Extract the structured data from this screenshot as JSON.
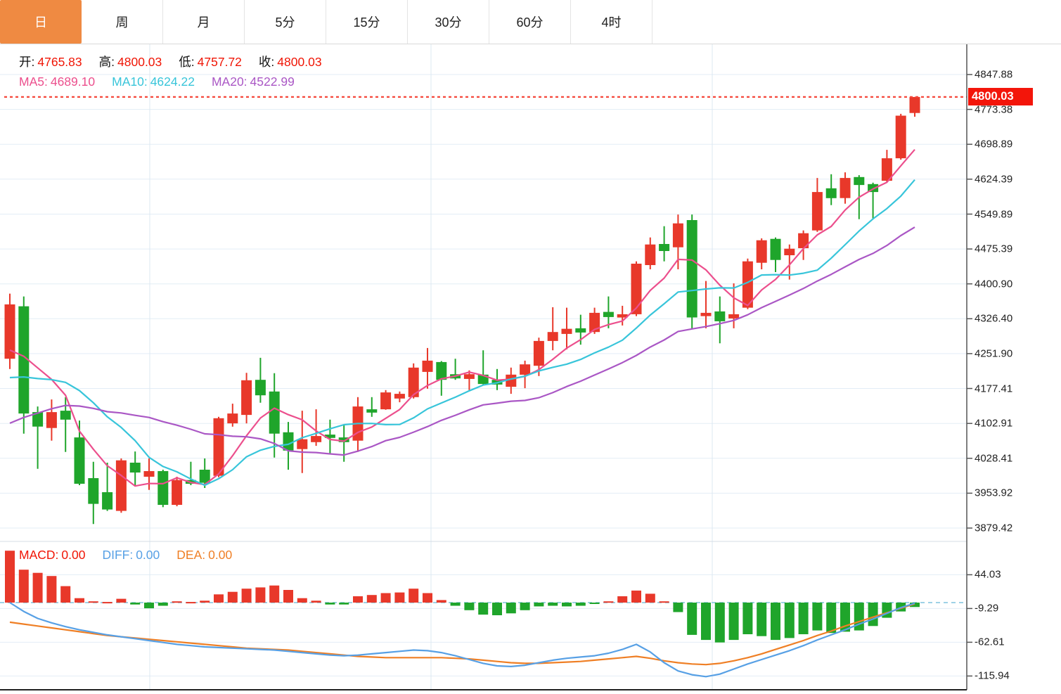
{
  "tabs": {
    "items": [
      {
        "label": "日",
        "active": true
      },
      {
        "label": "周"
      },
      {
        "label": "月"
      },
      {
        "label": "5分"
      },
      {
        "label": "15分"
      },
      {
        "label": "30分"
      },
      {
        "label": "60分"
      },
      {
        "label": "4时"
      }
    ]
  },
  "readout": {
    "ohlc": [
      {
        "label": "开:",
        "value": "4765.83"
      },
      {
        "label": "高:",
        "value": "4800.03"
      },
      {
        "label": "低:",
        "value": "4757.72"
      },
      {
        "label": "收:",
        "value": "4800.03"
      }
    ],
    "ma": [
      {
        "label": "MA5:",
        "value": "4689.10"
      },
      {
        "label": "MA10:",
        "value": "4624.22"
      },
      {
        "label": "MA20:",
        "value": "4522.99"
      }
    ],
    "macd": [
      {
        "label": "MACD:",
        "value": "0.00"
      },
      {
        "label": "DIFF:",
        "value": "0.00"
      },
      {
        "label": "DEA:",
        "value": "0.00"
      }
    ]
  },
  "colors": {
    "up_red": "#e8382a",
    "down_green": "#1fa52b",
    "ma5_pink": "#ec4f8d",
    "ma10_cyan": "#38c5da",
    "ma20_purple": "#aa57c5",
    "diff_blue": "#57a0e5",
    "dea_orange": "#ef7f25",
    "value_red": "#f01505",
    "tab_active_orange": "#ef8a42",
    "badge_red": "#f3150a",
    "dotted_line_red": "#f5473a",
    "grid_blue": "#e3edf6",
    "vgrid_blue": "#dce8f2",
    "zero_dash_blue": "#9ed2e6",
    "axis_line": "#555"
  },
  "chart_data": {
    "type": "candlestick+macd",
    "timeframe": "日",
    "last_price": 4800.03,
    "last_price_label": "4800.03",
    "price_axis_labels": [
      "4847.88",
      "4773.38",
      "4698.89",
      "4624.39",
      "4549.89",
      "4475.39",
      "4400.90",
      "4326.40",
      "4251.90",
      "4177.41",
      "4102.91",
      "4028.41",
      "3953.92",
      "3879.42"
    ],
    "macd_axis_labels": [
      "44.03",
      "-9.29",
      "-62.61",
      "-115.94"
    ],
    "ma_periods": [
      5,
      10,
      20
    ],
    "candles_ohlc": [
      [
        4241,
        4380,
        4219,
        4357
      ],
      [
        4353,
        4374,
        4081,
        4124
      ],
      [
        4127,
        4139,
        4006,
        4096
      ],
      [
        4093,
        4154,
        4066,
        4127
      ],
      [
        4130,
        4159,
        4042,
        4111
      ],
      [
        4073,
        4109,
        3971,
        3974
      ],
      [
        3986,
        4021,
        3888,
        3931
      ],
      [
        3956,
        4019,
        3916,
        3919
      ],
      [
        3916,
        4028,
        3912,
        4024
      ],
      [
        4019,
        4043,
        3971,
        3998
      ],
      [
        3989,
        4028,
        3961,
        4001
      ],
      [
        4001,
        4004,
        3924,
        3929
      ],
      [
        3929,
        3989,
        3926,
        3982
      ],
      [
        3982,
        4021,
        3971,
        3974
      ],
      [
        4004,
        4028,
        3965,
        3976
      ],
      [
        3991,
        4117,
        3988,
        4114
      ],
      [
        4103,
        4145,
        4096,
        4124
      ],
      [
        4121,
        4211,
        4103,
        4195
      ],
      [
        4196,
        4243,
        4147,
        4163
      ],
      [
        4171,
        4210,
        4030,
        4081
      ],
      [
        4084,
        4106,
        4004,
        4045
      ],
      [
        4048,
        4130,
        3997,
        4069
      ],
      [
        4063,
        4133,
        4055,
        4076
      ],
      [
        4079,
        4111,
        4039,
        4072
      ],
      [
        4073,
        4100,
        4021,
        4063
      ],
      [
        4066,
        4159,
        4042,
        4139
      ],
      [
        4133,
        4159,
        4117,
        4126
      ],
      [
        4133,
        4174,
        4132,
        4169
      ],
      [
        4156,
        4171,
        4148,
        4166
      ],
      [
        4159,
        4231,
        4156,
        4222
      ],
      [
        4213,
        4264,
        4177,
        4237
      ],
      [
        4234,
        4236,
        4162,
        4196
      ],
      [
        4208,
        4241,
        4196,
        4199
      ],
      [
        4198,
        4216,
        4174,
        4208
      ],
      [
        4207,
        4259,
        4186,
        4187
      ],
      [
        4196,
        4219,
        4174,
        4186
      ],
      [
        4181,
        4222,
        4166,
        4207
      ],
      [
        4207,
        4237,
        4178,
        4229
      ],
      [
        4226,
        4286,
        4204,
        4279
      ],
      [
        4279,
        4351,
        4259,
        4298
      ],
      [
        4294,
        4350,
        4261,
        4305
      ],
      [
        4306,
        4335,
        4271,
        4297
      ],
      [
        4298,
        4350,
        4294,
        4339
      ],
      [
        4341,
        4374,
        4306,
        4330
      ],
      [
        4329,
        4354,
        4312,
        4336
      ],
      [
        4336,
        4449,
        4332,
        4444
      ],
      [
        4441,
        4500,
        4432,
        4485
      ],
      [
        4486,
        4524,
        4449,
        4471
      ],
      [
        4479,
        4549,
        4432,
        4530
      ],
      [
        4537,
        4549,
        4305,
        4329
      ],
      [
        4332,
        4407,
        4306,
        4339
      ],
      [
        4342,
        4374,
        4274,
        4321
      ],
      [
        4327,
        4402,
        4306,
        4336
      ],
      [
        4350,
        4455,
        4347,
        4449
      ],
      [
        4446,
        4498,
        4432,
        4494
      ],
      [
        4497,
        4500,
        4426,
        4452
      ],
      [
        4462,
        4485,
        4410,
        4476
      ],
      [
        4477,
        4515,
        4452,
        4509
      ],
      [
        4515,
        4627,
        4512,
        4597
      ],
      [
        4605,
        4635,
        4569,
        4584
      ],
      [
        4584,
        4639,
        4572,
        4627
      ],
      [
        4629,
        4633,
        4539,
        4612
      ],
      [
        4614,
        4617,
        4539,
        4597
      ],
      [
        4621,
        4687,
        4617,
        4669
      ],
      [
        4669,
        4764,
        4666,
        4760
      ],
      [
        4765.83,
        4800.03,
        4757.72,
        4800.03
      ]
    ],
    "macd_hist": [
      82,
      52,
      47,
      42,
      26,
      7,
      2,
      1,
      6,
      -3,
      -9,
      -5,
      2,
      1,
      3,
      13,
      17,
      22,
      24,
      27,
      20,
      7,
      3,
      -3,
      -3,
      10,
      12,
      15,
      16,
      22,
      15,
      4,
      -5,
      -12,
      -19,
      -20,
      -17,
      -12,
      -6,
      -5,
      -6,
      -5,
      -2,
      2,
      10,
      19,
      14,
      2,
      -15,
      -51,
      -59,
      -63,
      -59,
      -50,
      -53,
      -59,
      -56,
      -50,
      -44,
      -48,
      -46,
      -44,
      -37,
      -24,
      -14,
      -7
    ],
    "diff_line": [
      0,
      -14,
      -25,
      -32,
      -38,
      -43,
      -47,
      -51,
      -54,
      -57,
      -60,
      -63,
      -66,
      -68,
      -70,
      -71,
      -72,
      -73,
      -74,
      -75,
      -77,
      -79,
      -81,
      -83,
      -84,
      -83,
      -81,
      -79,
      -77,
      -75,
      -76,
      -79,
      -84,
      -90,
      -96,
      -100,
      -101,
      -99,
      -95,
      -91,
      -88,
      -86,
      -84,
      -80,
      -74,
      -66,
      -78,
      -95,
      -108,
      -114,
      -117,
      -113,
      -105,
      -97,
      -90,
      -83,
      -76,
      -68,
      -59,
      -51,
      -43,
      -34,
      -26,
      -17,
      -8,
      -1
    ],
    "dea_line": [
      -31,
      -34,
      -37,
      -40,
      -43,
      -46,
      -49,
      -52,
      -54,
      -56,
      -58,
      -60,
      -62,
      -64,
      -66,
      -68,
      -70,
      -72,
      -73,
      -74,
      -75,
      -77,
      -79,
      -81,
      -83,
      -85,
      -86,
      -87,
      -87,
      -87,
      -87,
      -87,
      -88,
      -89,
      -91,
      -93,
      -95,
      -96,
      -96,
      -95,
      -94,
      -93,
      -91,
      -89,
      -87,
      -85,
      -88,
      -92,
      -95,
      -97,
      -98,
      -96,
      -92,
      -87,
      -81,
      -74,
      -67,
      -60,
      -52,
      -45,
      -37,
      -30,
      -23,
      -16,
      -9,
      -2
    ]
  }
}
